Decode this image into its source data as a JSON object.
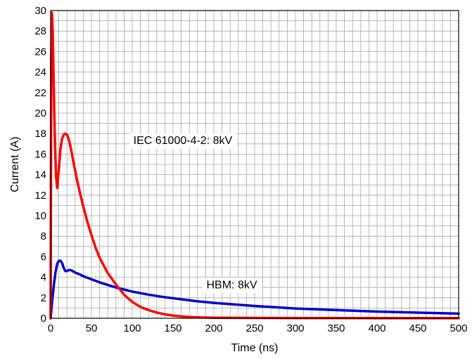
{
  "chart_data": {
    "type": "line",
    "title": "",
    "xlabel": "Time (ns)",
    "ylabel": "Current (A)",
    "xlim": [
      0,
      500
    ],
    "ylim": [
      0,
      30
    ],
    "grid": true,
    "x_ticks": [
      "0",
      "50",
      "100",
      "150",
      "200",
      "250",
      "300",
      "350",
      "400",
      "450",
      "500"
    ],
    "y_ticks": [
      "0",
      "2",
      "4",
      "6",
      "8",
      "10",
      "12",
      "14",
      "16",
      "18",
      "20",
      "22",
      "24",
      "26",
      "28",
      "30"
    ],
    "annotations": [
      {
        "text": "IEC 61000-4-2: 8kV",
        "x": 162,
        "y": 17.0
      },
      {
        "text": "HBM: 8kV",
        "x": 222,
        "y": 2.9
      }
    ],
    "series": [
      {
        "name": "IEC 61000-4-2: 8kV",
        "color": "#ff0000",
        "x": [
          0,
          0.7,
          1.5,
          2.5,
          3.5,
          5,
          6.5,
          8,
          10,
          12,
          14,
          16,
          18,
          20,
          22,
          25,
          28,
          32,
          36,
          40,
          45,
          50,
          55,
          60,
          70,
          80,
          90,
          100,
          110,
          120,
          130,
          140,
          150,
          160,
          170,
          180,
          190,
          200,
          220,
          250,
          300,
          350,
          400,
          450,
          500
        ],
        "y": [
          0,
          25,
          29.8,
          28,
          24,
          18,
          14,
          12.7,
          14.5,
          16.5,
          17.5,
          17.9,
          18.0,
          17.9,
          17.5,
          16.5,
          15.2,
          13.6,
          12.2,
          10.9,
          9.4,
          8.1,
          6.9,
          5.9,
          4.4,
          3.3,
          2.3,
          1.6,
          1.1,
          0.8,
          0.55,
          0.38,
          0.26,
          0.18,
          0.12,
          0.09,
          0.07,
          0.05,
          0.04,
          0.03,
          0.02,
          0.02,
          0.01,
          0.01,
          0.01
        ]
      },
      {
        "name": "HBM: 8kV",
        "color": "#0000cc",
        "x": [
          0,
          2,
          4,
          6,
          8,
          10,
          12,
          14,
          16,
          18,
          20,
          22,
          24,
          26,
          28,
          30,
          35,
          40,
          50,
          60,
          70,
          80,
          90,
          100,
          120,
          140,
          160,
          180,
          200,
          250,
          300,
          350,
          400,
          450,
          500
        ],
        "y": [
          0,
          1.8,
          3.3,
          4.5,
          5.3,
          5.6,
          5.6,
          5.4,
          4.9,
          4.6,
          4.6,
          4.7,
          4.7,
          4.65,
          4.55,
          4.45,
          4.3,
          4.1,
          3.8,
          3.5,
          3.25,
          3.0,
          2.8,
          2.6,
          2.3,
          2.05,
          1.85,
          1.65,
          1.5,
          1.2,
          0.95,
          0.8,
          0.65,
          0.55,
          0.45
        ]
      }
    ]
  }
}
